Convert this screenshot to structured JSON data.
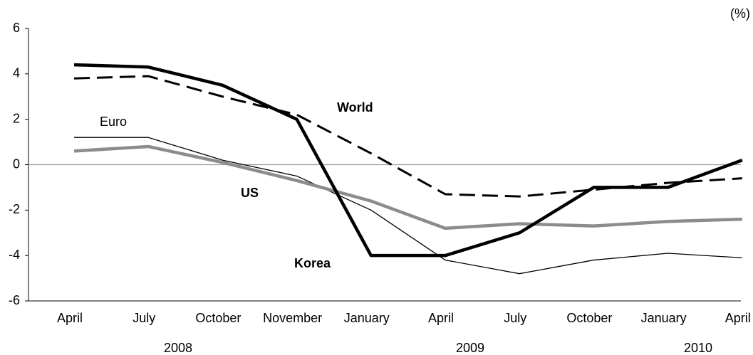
{
  "chart_data": {
    "type": "line",
    "unit": "(%)",
    "categories": [
      "April",
      "July",
      "October",
      "November",
      "January",
      "April",
      "July",
      "October",
      "January",
      "April"
    ],
    "year_labels": [
      "2008",
      "2009",
      "2010"
    ],
    "ylim": [
      -6,
      6
    ],
    "yticks": [
      -6,
      -4,
      -2,
      0,
      2,
      4,
      6
    ],
    "series": [
      {
        "name": "Euro",
        "color": "#000000",
        "width": 1.3,
        "dashed": false,
        "values": [
          1.2,
          1.2,
          0.2,
          -0.5,
          -2.0,
          -4.2,
          -4.8,
          -4.2,
          -3.9,
          -4.1
        ]
      },
      {
        "name": "US",
        "color": "#8c8c8c",
        "width": 4.5,
        "dashed": false,
        "values": [
          0.6,
          0.8,
          0.1,
          -0.7,
          -1.6,
          -2.8,
          -2.6,
          -2.7,
          -2.5,
          -2.4
        ]
      },
      {
        "name": "World",
        "color": "#000000",
        "width": 3,
        "dashed": true,
        "values": [
          3.8,
          3.9,
          3.0,
          2.2,
          0.5,
          -1.3,
          -1.4,
          -1.1,
          -0.8,
          -0.6
        ]
      },
      {
        "name": "Korea",
        "color": "#000000",
        "width": 4.5,
        "dashed": false,
        "values": [
          4.4,
          4.3,
          3.5,
          2.0,
          -4.0,
          -4.0,
          -3.0,
          -1.0,
          -1.0,
          0.2
        ]
      }
    ]
  }
}
